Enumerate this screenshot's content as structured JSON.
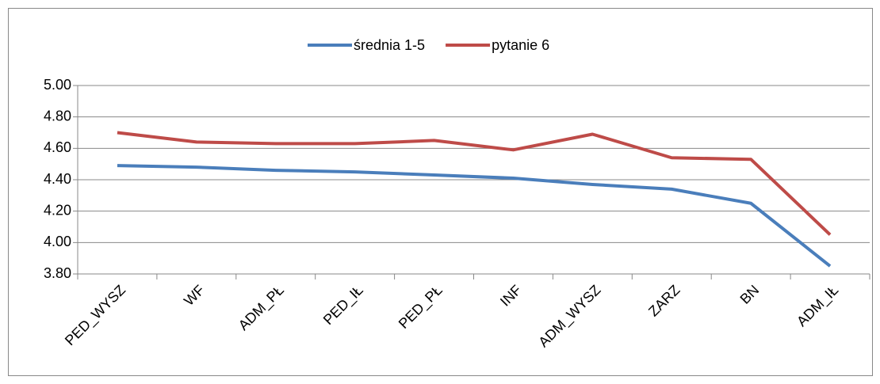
{
  "chart_data": {
    "type": "line",
    "categories": [
      "PED_WYSZ",
      "WF",
      "ADM_PŁ",
      "PED_IŁ",
      "PED_PŁ",
      "INF",
      "ADM_WYSZ",
      "ZARZ",
      "BN",
      "ADM_IŁ"
    ],
    "series": [
      {
        "name": "średnia 1-5",
        "color": "#4a7ebb",
        "values": [
          4.49,
          4.48,
          4.46,
          4.45,
          4.43,
          4.41,
          4.37,
          4.34,
          4.25,
          3.85
        ]
      },
      {
        "name": "pytanie 6",
        "color": "#be4b48",
        "values": [
          4.7,
          4.64,
          4.63,
          4.63,
          4.65,
          4.59,
          4.69,
          4.54,
          4.53,
          4.05
        ]
      }
    ],
    "ylim": [
      3.8,
      5.0
    ],
    "yticks": [
      {
        "value": 3.8,
        "label": "3.80"
      },
      {
        "value": 4.0,
        "label": "4.00"
      },
      {
        "value": 4.2,
        "label": "4.20"
      },
      {
        "value": 4.4,
        "label": "4.40"
      },
      {
        "value": 4.6,
        "label": "4.60"
      },
      {
        "value": 4.8,
        "label": "4.80"
      },
      {
        "value": 5.0,
        "label": "5.00"
      }
    ],
    "grid": true,
    "legend": "top"
  }
}
